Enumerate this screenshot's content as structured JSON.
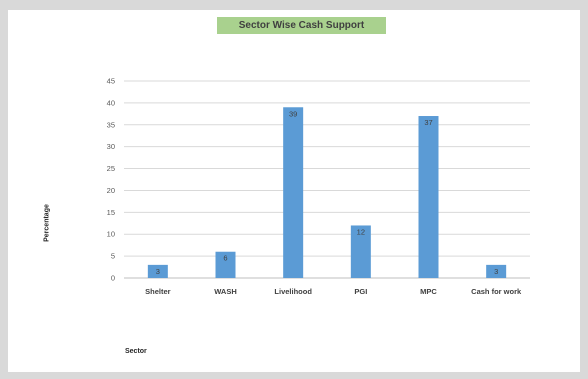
{
  "chart_data": {
    "type": "bar",
    "title": "Sector Wise Cash Support",
    "xlabel": "Sector",
    "ylabel": "Percentage",
    "categories": [
      "Shelter",
      "WASH",
      "Livelihood",
      "PGI",
      "MPC",
      "Cash for work"
    ],
    "values": [
      3,
      6,
      39,
      12,
      37,
      3
    ],
    "data_labels": [
      "3",
      "6",
      "39",
      "12",
      "37",
      "3"
    ],
    "ylim": [
      0,
      45
    ],
    "yticks": [
      0,
      5,
      10,
      15,
      20,
      25,
      30,
      35,
      40,
      45
    ],
    "grid": true,
    "legend": "none",
    "colors": {
      "bar": "#5b9bd5",
      "title_bg": "#a9d18e",
      "grid": "#d9d9d9"
    }
  }
}
